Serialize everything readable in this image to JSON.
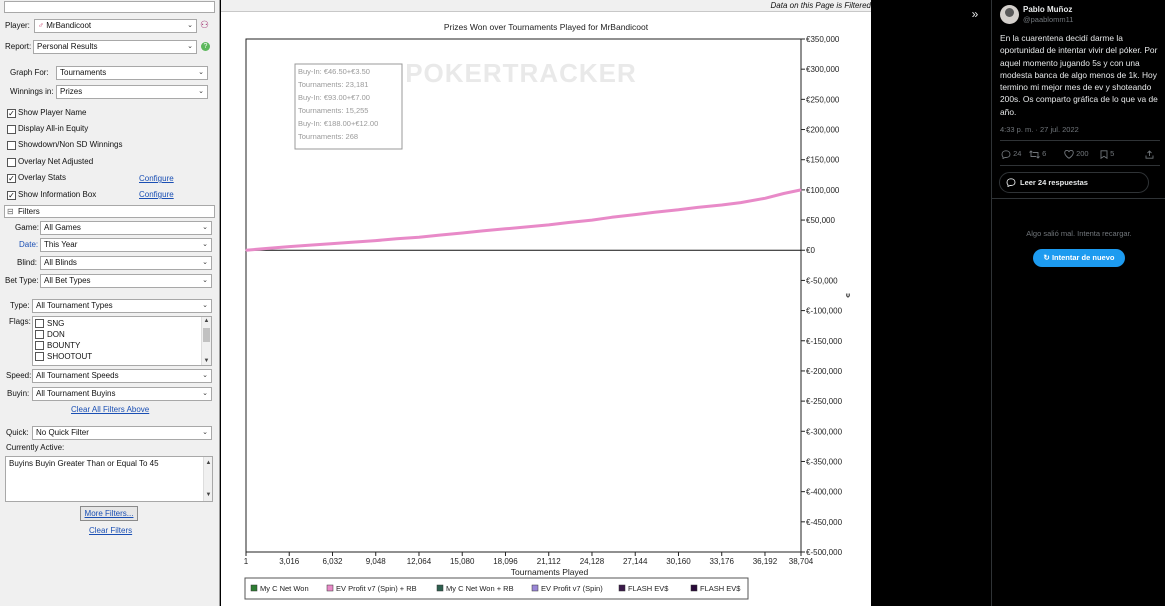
{
  "left_panel": {
    "top_input_value": "",
    "player_label": "Player:",
    "player_value": "MrBandicoot",
    "report_label": "Report:",
    "report_value": "Personal Results",
    "graph_for_label": "Graph For:",
    "graph_for_value": "Tournaments",
    "winnings_in_label": "Winnings in:",
    "winnings_in_value": "Prizes",
    "options": [
      {
        "label": "Show Player Name",
        "checked": true
      },
      {
        "label": "Display All-in Equity",
        "checked": false
      },
      {
        "label": "Showdown/Non SD Winnings",
        "checked": false
      },
      {
        "label": "Overlay Net Adjusted",
        "checked": false
      },
      {
        "label": "Overlay Stats",
        "checked": true,
        "link": "Configure"
      },
      {
        "label": "Show Information Box",
        "checked": true,
        "link": "Configure"
      }
    ],
    "filters_header": "Filters",
    "filters_toggle": "⊟",
    "game_label": "Game:",
    "game_value": "All Games",
    "date_label": "Date:",
    "date_value": "This Year",
    "blind_label": "Blind:",
    "blind_value": "All Blinds",
    "bet_type_label": "Bet Type:",
    "bet_type_value": "All Bet Types",
    "type_label": "Type:",
    "type_value": "All Tournament Types",
    "flags_label": "Flags:",
    "flags": [
      "SNG",
      "DON",
      "BOUNTY",
      "SHOOTOUT"
    ],
    "speed_label": "Speed:",
    "speed_value": "All Tournament Speeds",
    "buyin_label": "Buyin:",
    "buyin_value": "All Tournament Buyins",
    "clear_all_above": "Clear All Filters Above",
    "quick_label": "Quick:",
    "quick_value": "No Quick Filter",
    "currently_active_label": "Currently Active:",
    "currently_active_value": "Buyins Buyin Greater Than or Equal To 45",
    "more_filters": "More Filters...",
    "clear_filters": "Clear Filters"
  },
  "chart_panel": {
    "top_note": "Data on this Page is Filtered",
    "watermark": "POKERTRACKER",
    "info_box": [
      "Buy-In: €46.50+€3.50",
      "Tournaments: 23,181",
      "Buy-In: €93.00+€7.00",
      "Tournaments: 15,255",
      "Buy-In: €188.00+€12.00",
      "Tournaments: 268"
    ],
    "side_marker": "ᴪ"
  },
  "chart_data": {
    "type": "line",
    "title": "Prizes Won over Tournaments Played for MrBandicoot",
    "xlabel": "Tournaments Played",
    "ylabel": "",
    "xlim": [
      1,
      38704
    ],
    "ylim": [
      -500000,
      350000
    ],
    "x_ticks": [
      "1",
      "3,016",
      "6,032",
      "9,048",
      "12,064",
      "15,080",
      "18,096",
      "21,112",
      "24,128",
      "27,144",
      "30,160",
      "33,176",
      "36,192",
      "38,704"
    ],
    "x_tick_values": [
      1,
      3016,
      6032,
      9048,
      12064,
      15080,
      18096,
      21112,
      24128,
      27144,
      30160,
      33176,
      36192,
      38704
    ],
    "y_ticks": [
      "€350,000",
      "€300,000",
      "€250,000",
      "€200,000",
      "€150,000",
      "€100,000",
      "€50,000",
      "€0",
      "€-50,000",
      "€-100,000",
      "€-150,000",
      "€-200,000",
      "€-250,000",
      "€-300,000",
      "€-350,000",
      "€-400,000",
      "€-450,000",
      "€-500,000"
    ],
    "y_tick_values": [
      350000,
      300000,
      250000,
      200000,
      150000,
      100000,
      50000,
      0,
      -50000,
      -100000,
      -150000,
      -200000,
      -250000,
      -300000,
      -350000,
      -400000,
      -450000,
      -500000
    ],
    "grid": false,
    "legend_position": "bottom",
    "legend": [
      {
        "name": "My C Net Won",
        "color": "#2e7d32"
      },
      {
        "name": "EV Profit v7 (Spin) + RB",
        "color": "#e88ac8"
      },
      {
        "name": "My C Net Won + RB",
        "color": "#2e5f4f"
      },
      {
        "name": "EV Profit v7 (Spin)",
        "color": "#9a86d6"
      },
      {
        "name": "FLASH EV$",
        "color": "#3a1a4a"
      },
      {
        "name": "FLASH EV$",
        "color": "#2a0a3a"
      }
    ],
    "series": [
      {
        "name": "EV Profit v7 (Spin) + RB",
        "color": "#e88ac8",
        "x": [
          1,
          1500,
          3016,
          4500,
          6032,
          7500,
          9048,
          10500,
          12064,
          13500,
          15080,
          16500,
          18096,
          19500,
          21112,
          22500,
          24128,
          25500,
          27144,
          28500,
          30160,
          31500,
          33176,
          34500,
          36192,
          37500,
          38704
        ],
        "y": [
          0,
          3000,
          6000,
          8500,
          11000,
          13500,
          16000,
          19000,
          21500,
          25000,
          28500,
          32000,
          35500,
          38500,
          42000,
          46000,
          50000,
          54500,
          59000,
          63000,
          67000,
          71000,
          75000,
          79000,
          86000,
          94000,
          100000
        ]
      }
    ]
  },
  "tweet": {
    "expand_icon": "»",
    "name": "Pablo Muñoz",
    "handle": "@paablomm11",
    "text": "En la cuarentena decidí darme la oportunidad de intentar vivir del póker. Por aquel momento jugando 5s y con una modesta banca de algo menos de 1k. Hoy termino mi mejor mes de ev y shoteando 200s. Os comparto gráfica de lo que va de año.",
    "time": "4:33 p. m. · 27 jul. 2022",
    "replies": "24",
    "retweets": "6",
    "likes": "200",
    "bookmarks": "5",
    "read_replies": "Leer 24 respuestas",
    "error_text": "Algo salió mal. Intenta recargar.",
    "retry": "Intentar de nuevo"
  }
}
